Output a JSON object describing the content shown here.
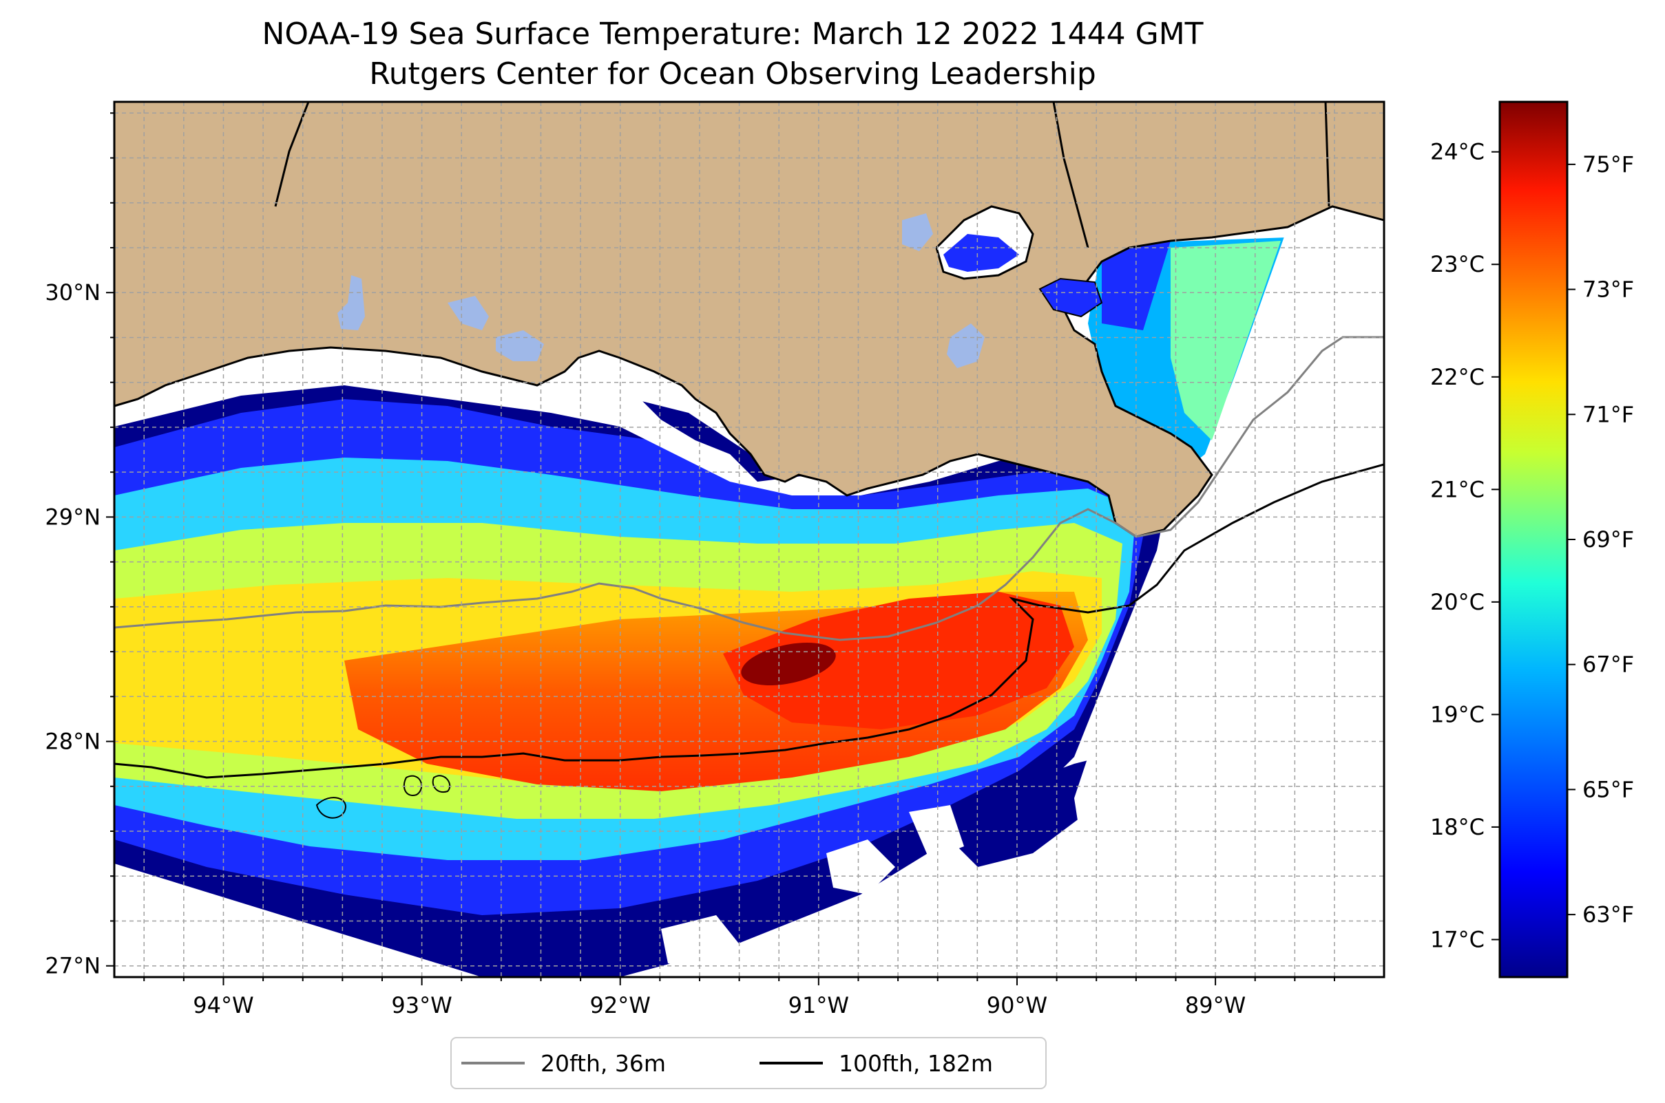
{
  "title": "NOAA-19 Sea Surface Temperature: March 12 2022 1444 GMT",
  "subtitle": "Rutgers Center for Ocean Observing Leadership",
  "map": {
    "longitude_ticks": [
      "94°W",
      "93°W",
      "92°W",
      "91°W",
      "90°W",
      "89°W"
    ],
    "latitude_ticks": [
      "30°N",
      "29°N",
      "28°N",
      "27°N"
    ],
    "lon_range": [
      -94.55,
      -88.15
    ],
    "lat_range": [
      26.95,
      30.85
    ],
    "land_color": "#D2B48C",
    "nodata_color": "#FFFFFF",
    "gridlines": true
  },
  "colorbar": {
    "colormap": "jet",
    "celsius_ticks": [
      "24°C",
      "23°C",
      "22°C",
      "21°C",
      "20°C",
      "19°C",
      "18°C",
      "17°C"
    ],
    "fahrenheit_ticks": [
      "75°F",
      "73°F",
      "71°F",
      "69°F",
      "67°F",
      "65°F",
      "63°F"
    ],
    "range_f": [
      62,
      76
    ]
  },
  "legend": {
    "entries": [
      {
        "label": "20fth, 36m",
        "color": "#808080"
      },
      {
        "label": "100fth, 182m",
        "color": "#000000"
      }
    ]
  }
}
